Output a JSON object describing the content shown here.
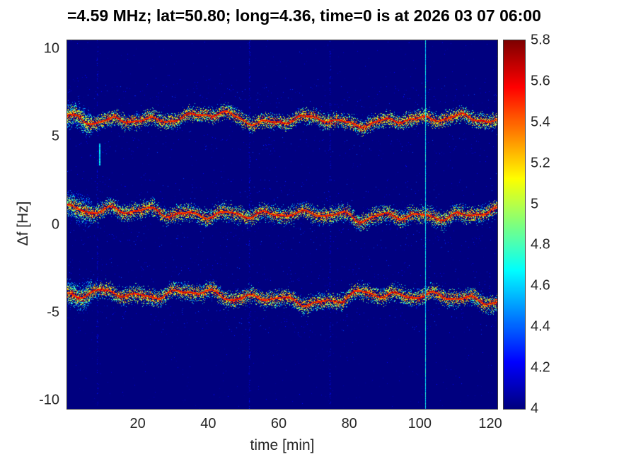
{
  "chart_data": {
    "type": "heatmap",
    "title": "=4.59 MHz;  lat=50.80; long=4.36, time=0 is at 2026 03 07 06:00",
    "xlabel": "time [min]",
    "ylabel": "Δf [Hz]",
    "xlim": [
      0,
      122
    ],
    "ylim": [
      -10.5,
      10.5
    ],
    "x_ticks": [
      20,
      40,
      60,
      80,
      100,
      120
    ],
    "y_ticks": [
      -10,
      -5,
      0,
      5,
      10
    ],
    "grid": false,
    "colormap": "jet",
    "colorbar": {
      "min": 4,
      "max": 5.8,
      "ticks": [
        4,
        4.2,
        4.4,
        4.6,
        4.8,
        5,
        5.2,
        5.4,
        5.6,
        5.8
      ],
      "position": "right"
    },
    "background_value": 4.0,
    "bands": [
      {
        "name": "upper-doppler-trace",
        "start_hz": 6.1,
        "end_hz": 5.75,
        "spread_hz": 0.42,
        "core_value": 5.8,
        "waves": [
          {
            "amp": 0.15,
            "period_min": 11,
            "phase": 0.6
          },
          {
            "amp": 0.1,
            "period_min": 23,
            "phase": 2.0
          },
          {
            "amp": 0.05,
            "period_min": 5.2,
            "phase": 4.1
          }
        ]
      },
      {
        "name": "center-doppler-trace",
        "start_hz": 0.95,
        "end_hz": 0.6,
        "spread_hz": 0.5,
        "core_value": 5.8,
        "waves": [
          {
            "amp": 0.17,
            "period_min": 11,
            "phase": 0.9
          },
          {
            "amp": 0.11,
            "period_min": 26,
            "phase": 3.2
          },
          {
            "amp": 0.06,
            "period_min": 6.1,
            "phase": 1.4
          }
        ]
      },
      {
        "name": "lower-doppler-trace",
        "start_hz": -3.95,
        "end_hz": -4.45,
        "spread_hz": 0.48,
        "core_value": 5.8,
        "waves": [
          {
            "amp": 0.16,
            "period_min": 10.5,
            "phase": 2.2
          },
          {
            "amp": 0.1,
            "period_min": 24,
            "phase": 5.0
          },
          {
            "amp": 0.05,
            "period_min": 5.7,
            "phase": 0.3
          }
        ]
      }
    ],
    "onset": {
      "t_end_min": 7,
      "spread_factor": 1.8,
      "density_factor": 1.8
    },
    "artifacts": {
      "vertical_line": {
        "time_min": 101.5,
        "value_min": 4.5,
        "value_max": 4.8
      },
      "faint_stripes": [
        {
          "time_min": 8.5
        },
        {
          "time_min": 51.5
        },
        {
          "time_min": 74.5
        }
      ],
      "blob": {
        "time_min": 9,
        "hz_min": 3.4,
        "hz_max": 4.6,
        "value": 4.6
      }
    },
    "noise": {
      "background_speckle_count": 1800,
      "speckle_value_max": 4.3
    },
    "colors": {
      "figure_background": "#ffffff",
      "axis_text": "#262626",
      "title_text": "#000000"
    }
  }
}
